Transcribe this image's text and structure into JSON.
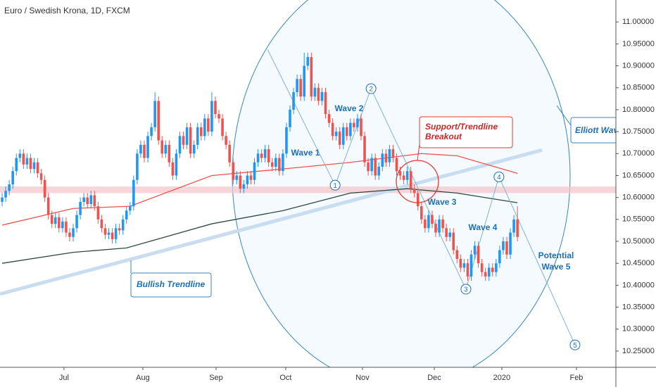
{
  "chart_data": {
    "type": "candlestick",
    "title": "Euro / Swedish Krona, 1D, FXCM",
    "up_color": "#2196f3",
    "down_color": "#ef5350",
    "ylim": [
      10.213,
      11.05
    ],
    "xlim": [
      -0.6,
      172.7
    ],
    "grid": false,
    "yticks": [
      {
        "value": 10.25,
        "label": "10.25000"
      },
      {
        "value": 10.3,
        "label": "10.30000"
      },
      {
        "value": 10.35,
        "label": "10.35000"
      },
      {
        "value": 10.4,
        "label": "10.40000"
      },
      {
        "value": 10.45,
        "label": "10.45000"
      },
      {
        "value": 10.5,
        "label": "10.50000"
      },
      {
        "value": 10.55,
        "label": "10.55000"
      },
      {
        "value": 10.6,
        "label": "10.60000"
      },
      {
        "value": 10.65,
        "label": "10.65000"
      },
      {
        "value": 10.7,
        "label": "10.70000"
      },
      {
        "value": 10.75,
        "label": "10.75000"
      },
      {
        "value": 10.8,
        "label": "10.80000"
      },
      {
        "value": 10.85,
        "label": "10.85000"
      },
      {
        "value": 10.9,
        "label": "10.90000"
      },
      {
        "value": 10.95,
        "label": "10.95000"
      },
      {
        "value": 11.0,
        "label": "11.00000"
      }
    ],
    "xticks": [
      {
        "value": 17.4,
        "label": "Jul"
      },
      {
        "value": 39.6,
        "label": "Aug"
      },
      {
        "value": 60.2,
        "label": "Sep"
      },
      {
        "value": 79.8,
        "label": "Oct"
      },
      {
        "value": 101.4,
        "label": "Nov"
      },
      {
        "value": 121.6,
        "label": "Dec"
      },
      {
        "value": 140.6,
        "label": "2020"
      },
      {
        "value": 161.6,
        "label": "Feb"
      }
    ],
    "candles": [
      [
        10.59,
        10.61,
        10.58,
        10.6
      ],
      [
        10.6,
        10.625,
        10.59,
        10.615
      ],
      [
        10.615,
        10.64,
        10.605,
        10.63
      ],
      [
        10.63,
        10.67,
        10.62,
        10.66
      ],
      [
        10.66,
        10.7,
        10.65,
        10.69
      ],
      [
        10.69,
        10.71,
        10.68,
        10.7
      ],
      [
        10.7,
        10.71,
        10.665,
        10.675
      ],
      [
        10.675,
        10.7,
        10.665,
        10.69
      ],
      [
        10.69,
        10.7,
        10.655,
        10.665
      ],
      [
        10.665,
        10.69,
        10.655,
        10.68
      ],
      [
        10.68,
        10.69,
        10.645,
        10.655
      ],
      [
        10.655,
        10.665,
        10.63,
        10.64
      ],
      [
        10.64,
        10.65,
        10.59,
        10.6
      ],
      [
        10.6,
        10.61,
        10.55,
        10.56
      ],
      [
        10.56,
        10.57,
        10.53,
        10.54
      ],
      [
        10.54,
        10.565,
        10.53,
        10.555
      ],
      [
        10.555,
        10.565,
        10.52,
        10.53
      ],
      [
        10.53,
        10.555,
        10.52,
        10.545
      ],
      [
        10.545,
        10.555,
        10.51,
        10.52
      ],
      [
        10.52,
        10.53,
        10.5,
        10.51
      ],
      [
        10.51,
        10.54,
        10.5,
        10.53
      ],
      [
        10.53,
        10.57,
        10.52,
        10.56
      ],
      [
        10.56,
        10.6,
        10.55,
        10.59
      ],
      [
        10.59,
        10.61,
        10.58,
        10.6
      ],
      [
        10.6,
        10.61,
        10.575,
        10.585
      ],
      [
        10.585,
        10.615,
        10.575,
        10.605
      ],
      [
        10.605,
        10.615,
        10.57,
        10.58
      ],
      [
        10.58,
        10.59,
        10.54,
        10.55
      ],
      [
        10.55,
        10.56,
        10.52,
        10.53
      ],
      [
        10.53,
        10.54,
        10.505,
        10.515
      ],
      [
        10.515,
        10.53,
        10.505,
        10.52
      ],
      [
        10.52,
        10.53,
        10.495,
        10.505
      ],
      [
        10.505,
        10.54,
        10.495,
        10.53
      ],
      [
        10.53,
        10.54,
        10.515,
        10.525
      ],
      [
        10.525,
        10.56,
        10.515,
        10.55
      ],
      [
        10.55,
        10.58,
        10.54,
        10.57
      ],
      [
        10.57,
        10.59,
        10.56,
        10.58
      ],
      [
        10.58,
        10.65,
        10.57,
        10.64
      ],
      [
        10.64,
        10.71,
        10.63,
        10.7
      ],
      [
        10.7,
        10.73,
        10.69,
        10.72
      ],
      [
        10.72,
        10.73,
        10.68,
        10.69
      ],
      [
        10.69,
        10.75,
        10.68,
        10.74
      ],
      [
        10.74,
        10.77,
        10.73,
        10.76
      ],
      [
        10.76,
        10.84,
        10.75,
        10.82
      ],
      [
        10.82,
        10.83,
        10.72,
        10.73
      ],
      [
        10.73,
        10.74,
        10.69,
        10.7
      ],
      [
        10.7,
        10.73,
        10.69,
        10.72
      ],
      [
        10.72,
        10.73,
        10.67,
        10.68
      ],
      [
        10.68,
        10.69,
        10.64,
        10.65
      ],
      [
        10.65,
        10.71,
        10.64,
        10.7
      ],
      [
        10.7,
        10.75,
        10.69,
        10.74
      ],
      [
        10.74,
        10.75,
        10.71,
        10.72
      ],
      [
        10.72,
        10.77,
        10.71,
        10.76
      ],
      [
        10.76,
        10.77,
        10.69,
        10.7
      ],
      [
        10.7,
        10.73,
        10.69,
        10.72
      ],
      [
        10.72,
        10.77,
        10.71,
        10.76
      ],
      [
        10.76,
        10.77,
        10.73,
        10.74
      ],
      [
        10.74,
        10.79,
        10.73,
        10.78
      ],
      [
        10.78,
        10.79,
        10.74,
        10.75
      ],
      [
        10.75,
        10.84,
        10.74,
        10.82
      ],
      [
        10.82,
        10.83,
        10.78,
        10.79
      ],
      [
        10.79,
        10.8,
        10.77,
        10.78
      ],
      [
        10.78,
        10.79,
        10.73,
        10.74
      ],
      [
        10.74,
        10.75,
        10.71,
        10.72
      ],
      [
        10.72,
        10.73,
        10.67,
        10.68
      ],
      [
        10.68,
        10.69,
        10.63,
        10.64
      ],
      [
        10.64,
        10.66,
        10.63,
        10.65
      ],
      [
        10.65,
        10.66,
        10.61,
        10.62
      ],
      [
        10.62,
        10.64,
        10.61,
        10.63
      ],
      [
        10.63,
        10.66,
        10.62,
        10.65
      ],
      [
        10.65,
        10.66,
        10.63,
        10.64
      ],
      [
        10.64,
        10.69,
        10.63,
        10.68
      ],
      [
        10.68,
        10.71,
        10.67,
        10.7
      ],
      [
        10.7,
        10.71,
        10.68,
        10.69
      ],
      [
        10.69,
        10.72,
        10.68,
        10.71
      ],
      [
        10.71,
        10.72,
        10.67,
        10.68
      ],
      [
        10.68,
        10.69,
        10.66,
        10.67
      ],
      [
        10.67,
        10.7,
        10.66,
        10.69
      ],
      [
        10.69,
        10.7,
        10.65,
        10.66
      ],
      [
        10.66,
        10.71,
        10.65,
        10.7
      ],
      [
        10.7,
        10.77,
        10.69,
        10.76
      ],
      [
        10.76,
        10.81,
        10.75,
        10.8
      ],
      [
        10.8,
        10.85,
        10.79,
        10.84
      ],
      [
        10.84,
        10.88,
        10.83,
        10.87
      ],
      [
        10.87,
        10.88,
        10.82,
        10.83
      ],
      [
        10.83,
        10.93,
        10.82,
        10.9
      ],
      [
        10.9,
        10.93,
        10.89,
        10.92
      ],
      [
        10.92,
        10.93,
        10.82,
        10.83
      ],
      [
        10.83,
        10.86,
        10.82,
        10.85
      ],
      [
        10.85,
        10.86,
        10.81,
        10.82
      ],
      [
        10.82,
        10.85,
        10.81,
        10.84
      ],
      [
        10.84,
        10.85,
        10.78,
        10.79
      ],
      [
        10.79,
        10.8,
        10.76,
        10.77
      ],
      [
        10.77,
        10.78,
        10.73,
        10.74
      ],
      [
        10.74,
        10.76,
        10.73,
        10.75
      ],
      [
        10.75,
        10.76,
        10.71,
        10.72
      ],
      [
        10.72,
        10.77,
        10.71,
        10.76
      ],
      [
        10.76,
        10.77,
        10.73,
        10.74
      ],
      [
        10.74,
        10.78,
        10.73,
        10.77
      ],
      [
        10.77,
        10.78,
        10.75,
        10.76
      ],
      [
        10.76,
        10.79,
        10.75,
        10.78
      ],
      [
        10.78,
        10.79,
        10.73,
        10.74
      ],
      [
        10.74,
        10.75,
        10.67,
        10.68
      ],
      [
        10.68,
        10.69,
        10.65,
        10.66
      ],
      [
        10.66,
        10.7,
        10.65,
        10.69
      ],
      [
        10.69,
        10.7,
        10.64,
        10.65
      ],
      [
        10.65,
        10.68,
        10.64,
        10.67
      ],
      [
        10.67,
        10.71,
        10.66,
        10.7
      ],
      [
        10.7,
        10.71,
        10.67,
        10.68
      ],
      [
        10.68,
        10.72,
        10.67,
        10.71
      ],
      [
        10.71,
        10.72,
        10.68,
        10.69
      ],
      [
        10.69,
        10.7,
        10.65,
        10.66
      ],
      [
        10.66,
        10.67,
        10.64,
        10.65
      ],
      [
        10.65,
        10.66,
        10.63,
        10.64
      ],
      [
        10.64,
        10.67,
        10.63,
        10.66
      ],
      [
        10.66,
        10.67,
        10.61,
        10.62
      ],
      [
        10.62,
        10.63,
        10.6,
        10.61
      ],
      [
        10.61,
        10.62,
        10.57,
        10.58
      ],
      [
        10.58,
        10.59,
        10.54,
        10.55
      ],
      [
        10.55,
        10.56,
        10.52,
        10.53
      ],
      [
        10.53,
        10.57,
        10.52,
        10.56
      ],
      [
        10.56,
        10.57,
        10.53,
        10.54
      ],
      [
        10.54,
        10.55,
        10.51,
        10.52
      ],
      [
        10.52,
        10.56,
        10.51,
        10.55
      ],
      [
        10.55,
        10.56,
        10.52,
        10.53
      ],
      [
        10.53,
        10.54,
        10.5,
        10.51
      ],
      [
        10.51,
        10.53,
        10.5,
        10.52
      ],
      [
        10.52,
        10.53,
        10.47,
        10.48
      ],
      [
        10.48,
        10.49,
        10.45,
        10.46
      ],
      [
        10.46,
        10.47,
        10.43,
        10.44
      ],
      [
        10.44,
        10.46,
        10.43,
        10.45
      ],
      [
        10.45,
        10.46,
        10.41,
        10.42
      ],
      [
        10.42,
        10.48,
        10.41,
        10.47
      ],
      [
        10.47,
        10.5,
        10.46,
        10.49
      ],
      [
        10.49,
        10.5,
        10.44,
        10.45
      ],
      [
        10.45,
        10.46,
        10.42,
        10.43
      ],
      [
        10.43,
        10.44,
        10.41,
        10.42
      ],
      [
        10.42,
        10.45,
        10.41,
        10.44
      ],
      [
        10.44,
        10.45,
        10.42,
        10.43
      ],
      [
        10.43,
        10.46,
        10.42,
        10.45
      ],
      [
        10.45,
        10.49,
        10.44,
        10.48
      ],
      [
        10.48,
        10.51,
        10.47,
        10.5
      ],
      [
        10.5,
        10.51,
        10.46,
        10.47
      ],
      [
        10.47,
        10.53,
        10.46,
        10.52
      ],
      [
        10.52,
        10.56,
        10.51,
        10.55
      ],
      [
        10.55,
        10.58,
        10.5,
        10.51
      ]
    ],
    "lines": [
      {
        "color": "#ef5350",
        "x": [
          0,
          20,
          36,
          59,
          79,
          98,
          118,
          128,
          145
        ],
        "values": [
          10.537,
          10.575,
          10.58,
          10.65,
          10.665,
          10.68,
          10.7,
          10.695,
          10.655
        ]
      },
      {
        "color": "#2e4a3f",
        "x": [
          0,
          20,
          35,
          59,
          79,
          98,
          114,
          128,
          145
        ],
        "values": [
          10.45,
          10.475,
          10.485,
          10.54,
          10.57,
          10.61,
          10.62,
          10.61,
          10.588
        ]
      }
    ],
    "trendline": {
      "color": "#c8ddf0",
      "x": [
        -0.6,
        151.9
      ],
      "values": [
        10.38,
        10.708
      ]
    },
    "support_zone": {
      "color": "#f4c7cc",
      "values": [
        10.61,
        10.625
      ]
    },
    "wave_points": {
      "color": "#7fb2dc",
      "x": [
        74.7,
        93.7,
        103.8,
        130.5,
        139.8,
        161.2
      ],
      "values": [
        10.937,
        10.628,
        10.848,
        10.391,
        10.647,
        10.264
      ],
      "labels": [
        null,
        "1",
        "2",
        "3",
        "4",
        "5"
      ]
    },
    "annotations": {
      "wave1": "Wave 1",
      "wave2": "Wave 2",
      "wave3": "Wave 3",
      "wave4": "Wave 4",
      "potential": "Potential",
      "wave5": "Wave 5",
      "trend": "Bullish Trendline",
      "support1": "Support/Trendline",
      "support2": "Breakout",
      "elliott": "Elliott Wave"
    }
  }
}
